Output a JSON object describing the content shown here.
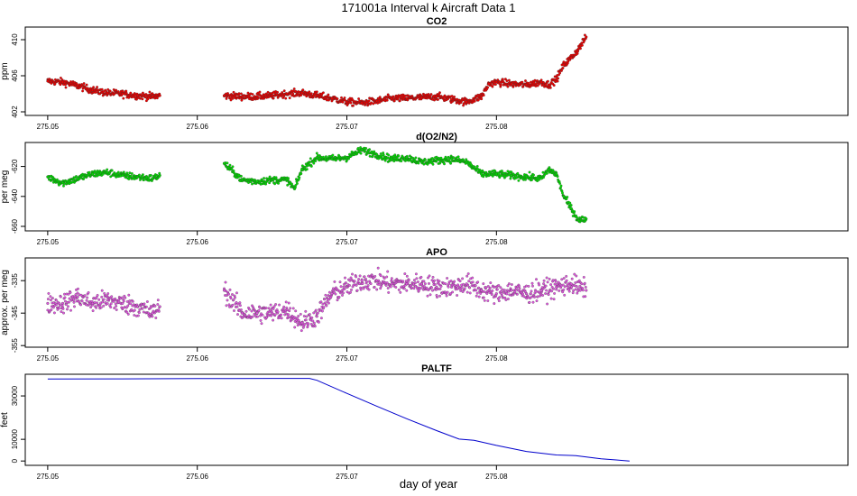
{
  "page": {
    "title": "171001a   Interval k Aircraft Data 1",
    "xlabel": "day of year"
  },
  "colors": {
    "co2": "#ee0000",
    "o2n2": "#00dd00",
    "apo": "#dd55dd",
    "paltf": "#0000cc"
  },
  "chart_data": [
    {
      "type": "scatter",
      "title": "CO2",
      "ylabel": "ppm",
      "xlim": [
        275.0485,
        275.1035
      ],
      "ylim": [
        401.6,
        411.4
      ],
      "xticks": [
        275.05,
        275.06,
        275.07,
        275.08
      ],
      "xtick_labels": [
        "275.05",
        "275.06",
        "275.07",
        "275.08"
      ],
      "yticks": [
        402,
        406,
        410
      ],
      "ytick_labels": [
        "402",
        "406",
        "410"
      ],
      "series": [
        {
          "x": [
            275.05,
            275.051,
            275.052,
            275.053,
            275.054,
            275.055,
            275.056,
            275.057,
            275.0575,
            275.0618,
            275.063,
            275.064,
            275.065,
            275.066,
            275.067,
            275.068,
            275.069,
            275.07,
            275.071,
            275.072,
            275.073,
            275.074,
            275.075,
            275.076,
            275.077,
            275.078,
            275.079,
            275.0795,
            275.08,
            275.081,
            275.082,
            275.083,
            275.0835,
            275.084,
            275.0845,
            275.085,
            275.0855,
            275.086
          ],
          "y": [
            405.4,
            405.3,
            404.9,
            404.4,
            404.1,
            404.0,
            403.8,
            403.7,
            403.8,
            403.8,
            403.7,
            403.7,
            403.8,
            404.0,
            404.1,
            403.8,
            403.5,
            403.1,
            403.0,
            403.2,
            403.5,
            403.5,
            403.6,
            403.7,
            403.4,
            403.1,
            403.7,
            405.1,
            405.3,
            405.1,
            405.0,
            405.3,
            405.0,
            405.6,
            407.2,
            408.0,
            409.0,
            410.3
          ]
        }
      ]
    },
    {
      "type": "scatter",
      "title": "d(O2/N2)",
      "ylabel": "per meg",
      "xlim": [
        275.0485,
        275.1035
      ],
      "ylim": [
        -663,
        -604
      ],
      "xticks": [
        275.05,
        275.06,
        275.07,
        275.08
      ],
      "xtick_labels": [
        "275.05",
        "275.06",
        "275.07",
        "275.08"
      ],
      "yticks": [
        -660,
        -640,
        -620
      ],
      "ytick_labels": [
        "-660",
        "-640",
        "-620"
      ],
      "series": [
        {
          "x": [
            275.05,
            275.051,
            275.052,
            275.053,
            275.054,
            275.055,
            275.056,
            275.057,
            275.0575,
            275.0618,
            275.063,
            275.064,
            275.065,
            275.066,
            275.0665,
            275.067,
            275.068,
            275.069,
            275.07,
            275.071,
            275.072,
            275.073,
            275.074,
            275.075,
            275.076,
            275.077,
            275.078,
            275.079,
            275.08,
            275.081,
            275.082,
            275.083,
            275.0835,
            275.084,
            275.0845,
            275.085,
            275.0855,
            275.086
          ],
          "y": [
            -627,
            -631,
            -628,
            -625,
            -624,
            -626,
            -627,
            -628,
            -626,
            -618,
            -629,
            -630,
            -629,
            -629,
            -635,
            -622,
            -614,
            -615,
            -614,
            -609,
            -612,
            -615,
            -614,
            -617,
            -616,
            -615,
            -617,
            -625,
            -625,
            -626,
            -627,
            -628,
            -622,
            -625,
            -640,
            -648,
            -656,
            -655
          ]
        }
      ]
    },
    {
      "type": "scatter",
      "title": "APO",
      "ylabel": "approx. per meg",
      "xlim": [
        275.0485,
        275.1035
      ],
      "ylim": [
        -355.5,
        -328
      ],
      "xticks": [
        275.05,
        275.06,
        275.07,
        275.08
      ],
      "xtick_labels": [
        "275.05",
        "275.06",
        "275.07",
        "275.08"
      ],
      "yticks": [
        -355,
        -345,
        -335
      ],
      "ytick_labels": [
        "-355",
        "-345",
        "-335"
      ],
      "series": [
        {
          "x": [
            275.05,
            275.051,
            275.052,
            275.053,
            275.054,
            275.055,
            275.056,
            275.057,
            275.0575,
            275.0618,
            275.063,
            275.064,
            275.065,
            275.066,
            275.067,
            275.068,
            275.069,
            275.07,
            275.071,
            275.072,
            275.073,
            275.074,
            275.075,
            275.076,
            275.077,
            275.078,
            275.079,
            275.08,
            275.081,
            275.082,
            275.083,
            275.084,
            275.085,
            275.086
          ],
          "y": [
            -342,
            -342,
            -340,
            -342,
            -341,
            -342,
            -343,
            -345,
            -343,
            -338,
            -345,
            -345,
            -345,
            -344,
            -348,
            -346,
            -339,
            -337,
            -335,
            -335,
            -336,
            -336,
            -336,
            -337,
            -337,
            -336,
            -338,
            -339,
            -338,
            -339,
            -338,
            -337,
            -336,
            -338
          ]
        }
      ]
    },
    {
      "type": "line",
      "title": "PALTF",
      "ylabel": "feet",
      "xlim": [
        275.0485,
        275.1035
      ],
      "ylim": [
        -2000,
        40000
      ],
      "xticks": [
        275.05,
        275.06,
        275.07,
        275.08
      ],
      "xtick_labels": [
        "275.05",
        "275.06",
        "275.07",
        "275.08"
      ],
      "yticks": [
        0,
        10000,
        30000
      ],
      "ytick_labels": [
        "0",
        "10000",
        "30000"
      ],
      "series": [
        {
          "x": [
            275.05,
            275.055,
            275.06,
            275.065,
            275.0675,
            275.068,
            275.07,
            275.072,
            275.074,
            275.076,
            275.0775,
            275.0785,
            275.08,
            275.082,
            275.084,
            275.0853,
            275.087,
            275.088,
            275.0889
          ],
          "y": [
            37800,
            37900,
            38000,
            38100,
            38100,
            37200,
            31200,
            25300,
            19500,
            14000,
            10100,
            9500,
            7200,
            4400,
            2800,
            2500,
            1000,
            500,
            0
          ]
        }
      ]
    }
  ]
}
